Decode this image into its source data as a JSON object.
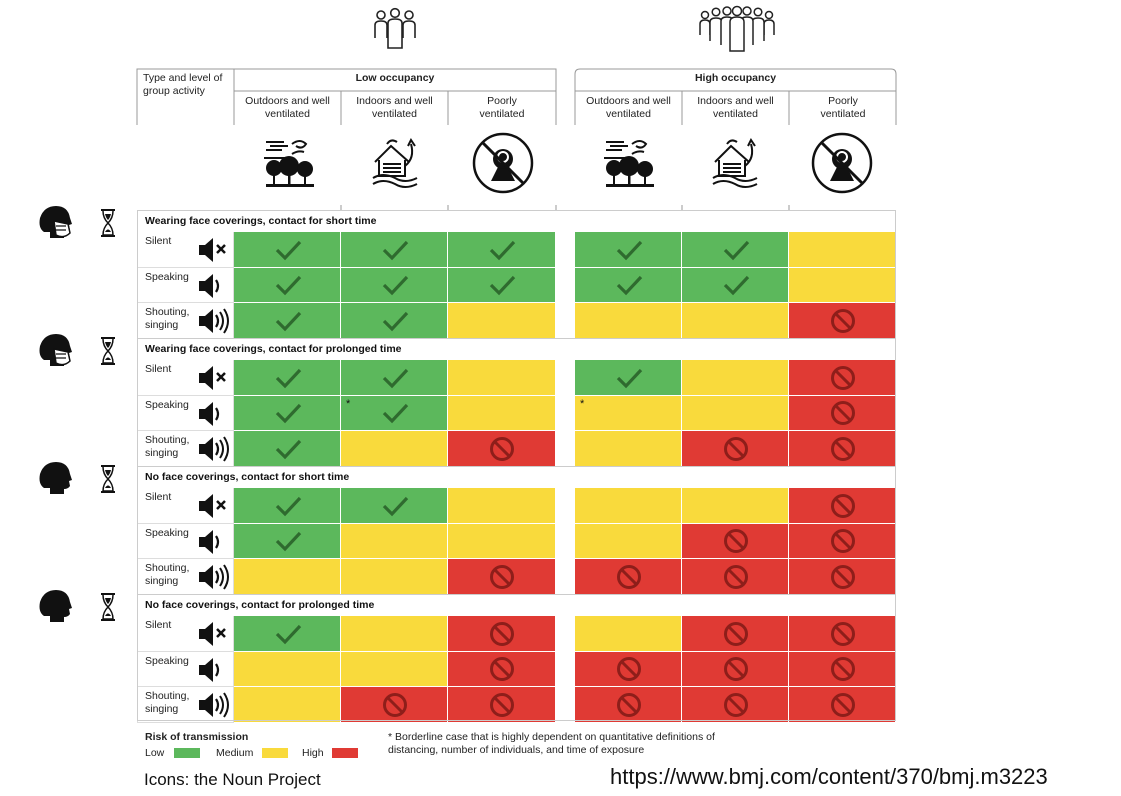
{
  "chart_data": {
    "type": "table",
    "corner_label": "Type and level of group activity",
    "groups": [
      {
        "name": "Low occupancy",
        "columns": [
          "Outdoors and well ventilated",
          "Indoors and well ventilated",
          "Poorly ventilated"
        ]
      },
      {
        "name": "High occupancy",
        "columns": [
          "Outdoors and well ventilated",
          "Indoors and well ventilated",
          "Poorly ventilated"
        ]
      }
    ],
    "column_icons": [
      "outdoors-icon",
      "indoors-ventilated-icon",
      "no-ventilation-icon",
      "outdoors-icon",
      "indoors-ventilated-icon",
      "no-ventilation-icon"
    ],
    "activities": [
      "Silent",
      "Speaking",
      "Shouting, singing"
    ],
    "sections": [
      {
        "title": "Wearing face coverings, contact for short time",
        "face_covering": true,
        "rows": [
          {
            "activity": "Silent",
            "risk": [
              "low",
              "low",
              "low",
              "low",
              "low",
              "medium"
            ],
            "borderline": [
              false,
              false,
              false,
              false,
              false,
              false
            ]
          },
          {
            "activity": "Speaking",
            "risk": [
              "low",
              "low",
              "low",
              "low",
              "low",
              "medium"
            ],
            "borderline": [
              false,
              false,
              false,
              false,
              false,
              false
            ]
          },
          {
            "activity": "Shouting, singing",
            "risk": [
              "low",
              "low",
              "medium",
              "medium",
              "medium",
              "high"
            ],
            "borderline": [
              false,
              false,
              false,
              false,
              false,
              false
            ]
          }
        ]
      },
      {
        "title": "Wearing face coverings, contact for prolonged time",
        "face_covering": true,
        "rows": [
          {
            "activity": "Silent",
            "risk": [
              "low",
              "low",
              "medium",
              "low",
              "medium",
              "high"
            ],
            "borderline": [
              false,
              false,
              false,
              false,
              false,
              false
            ]
          },
          {
            "activity": "Speaking",
            "risk": [
              "low",
              "low",
              "medium",
              "medium",
              "medium",
              "high"
            ],
            "borderline": [
              false,
              true,
              false,
              true,
              false,
              false
            ]
          },
          {
            "activity": "Shouting, singing",
            "risk": [
              "low",
              "medium",
              "high",
              "medium",
              "high",
              "high"
            ],
            "borderline": [
              false,
              false,
              false,
              false,
              false,
              false
            ]
          }
        ]
      },
      {
        "title": "No face coverings, contact for short time",
        "face_covering": false,
        "rows": [
          {
            "activity": "Silent",
            "risk": [
              "low",
              "low",
              "medium",
              "medium",
              "medium",
              "high"
            ],
            "borderline": [
              false,
              false,
              false,
              false,
              false,
              false
            ]
          },
          {
            "activity": "Speaking",
            "risk": [
              "low",
              "medium",
              "medium",
              "medium",
              "high",
              "high"
            ],
            "borderline": [
              false,
              false,
              false,
              false,
              false,
              false
            ]
          },
          {
            "activity": "Shouting, singing",
            "risk": [
              "medium",
              "medium",
              "high",
              "high",
              "high",
              "high"
            ],
            "borderline": [
              false,
              false,
              false,
              false,
              false,
              false
            ]
          }
        ]
      },
      {
        "title": "No face coverings, contact for prolonged time",
        "face_covering": false,
        "rows": [
          {
            "activity": "Silent",
            "risk": [
              "low",
              "medium",
              "high",
              "medium",
              "high",
              "high"
            ],
            "borderline": [
              false,
              false,
              false,
              false,
              false,
              false
            ]
          },
          {
            "activity": "Speaking",
            "risk": [
              "medium",
              "medium",
              "high",
              "high",
              "high",
              "high"
            ],
            "borderline": [
              false,
              false,
              false,
              false,
              false,
              false
            ]
          },
          {
            "activity": "Shouting, singing",
            "risk": [
              "medium",
              "high",
              "high",
              "high",
              "high",
              "high"
            ],
            "borderline": [
              false,
              false,
              false,
              false,
              false,
              false
            ]
          }
        ]
      }
    ],
    "legend": {
      "title": "Risk of transmission",
      "items": [
        {
          "level": "low",
          "label": "Low",
          "color": "#5cb85c"
        },
        {
          "level": "medium",
          "label": "Medium",
          "color": "#f9da3c"
        },
        {
          "level": "high",
          "label": "High",
          "color": "#e03a34"
        }
      ]
    },
    "footnote": "* Borderline case that is highly dependent on quantitative definitions of distancing, number of individuals, and time of exposure",
    "borderline_marker": "*"
  },
  "credits": {
    "icons": "Icons: the Noun Project",
    "url": "https://www.bmj.com/content/370/bmj.m3223"
  },
  "colors": {
    "low": "#5cb85c",
    "medium": "#f9da3c",
    "high": "#e03a34",
    "check": "#2f6b2f",
    "prohibit": "#8e1e1a"
  }
}
